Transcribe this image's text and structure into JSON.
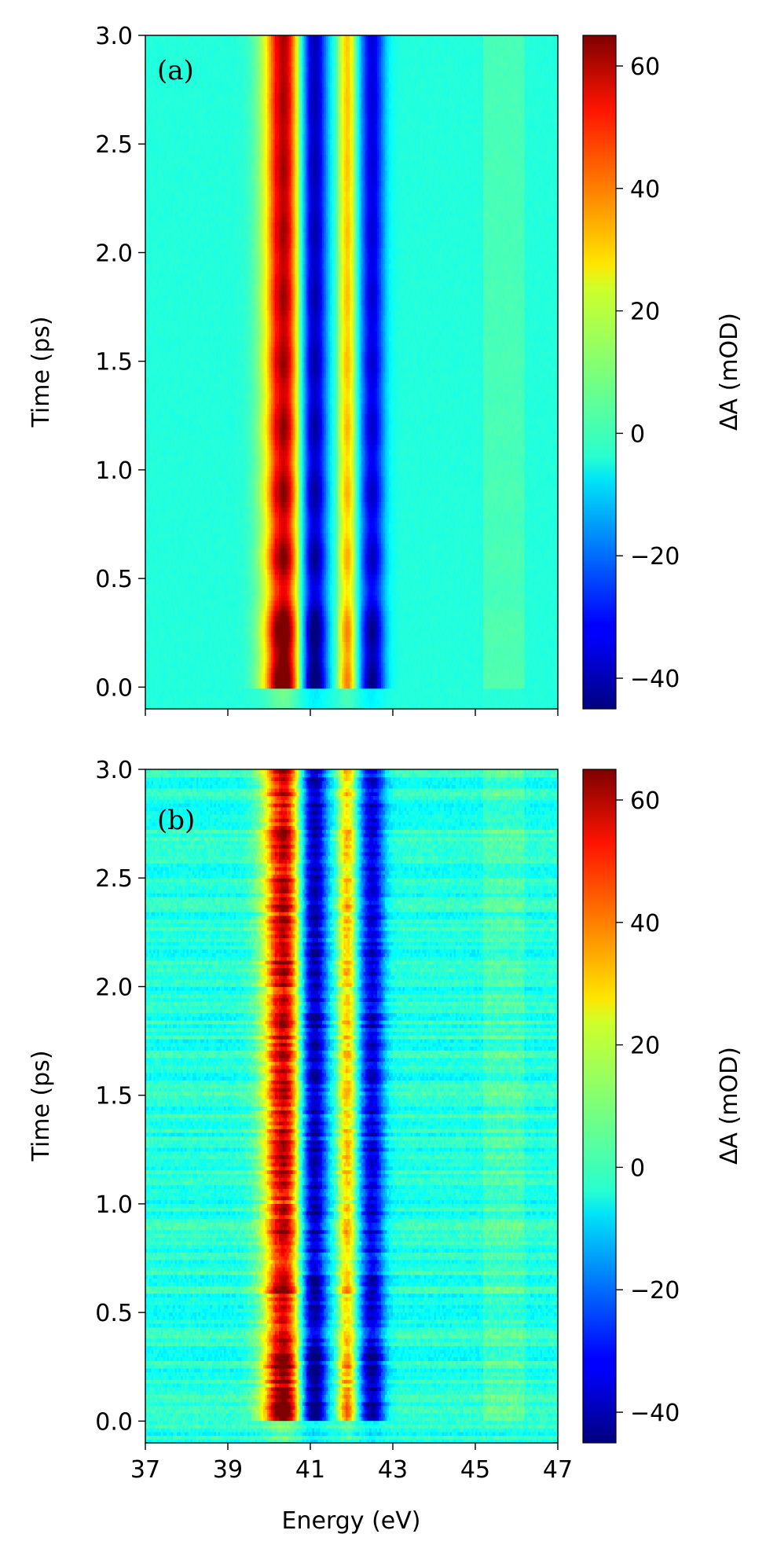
{
  "chart_data": [
    {
      "type": "heatmap",
      "panel_label": "(a)",
      "ylabel": "Time (ps)",
      "xlabel": "",
      "xlim": [
        37,
        47
      ],
      "ylim": [
        -0.1,
        3.0
      ],
      "x_ticks": [
        37,
        39,
        41,
        43,
        45,
        47
      ],
      "x_tick_labels_shown": false,
      "y_ticks": [
        "0.0",
        "0.5",
        "1.0",
        "1.5",
        "2.0",
        "2.5",
        "3.0"
      ],
      "colorbar": {
        "label": "ΔA (mOD)",
        "range": [
          -45,
          65
        ],
        "ticks": [
          "−40",
          "−20",
          "0",
          "20",
          "40",
          "60"
        ],
        "colormap": "jet"
      },
      "features": [
        {
          "kind": "positive",
          "center_eV": 40.35,
          "peak_mOD": 60
        },
        {
          "kind": "negative",
          "center_eV": 41.1,
          "peak_mOD": -40
        },
        {
          "kind": "positive",
          "center_eV": 41.9,
          "peak_mOD": 30
        },
        {
          "kind": "negative",
          "center_eV": 42.5,
          "peak_mOD": -35
        }
      ],
      "noise": "low"
    },
    {
      "type": "heatmap",
      "panel_label": "(b)",
      "ylabel": "Time (ps)",
      "xlabel": "Energy (eV)",
      "xlim": [
        37,
        47
      ],
      "ylim": [
        -0.1,
        3.0
      ],
      "x_ticks": [
        37,
        39,
        41,
        43,
        45,
        47
      ],
      "x_tick_labels_shown": true,
      "x_tick_labels": [
        "37",
        "39",
        "41",
        "43",
        "45",
        "47"
      ],
      "y_ticks": [
        "0.0",
        "0.5",
        "1.0",
        "1.5",
        "2.0",
        "2.5",
        "3.0"
      ],
      "colorbar": {
        "label": "ΔA (mOD)",
        "range": [
          -45,
          65
        ],
        "ticks": [
          "−40",
          "−20",
          "0",
          "20",
          "40",
          "60"
        ],
        "colormap": "jet"
      },
      "features": [
        {
          "kind": "positive",
          "center_eV": 40.35,
          "peak_mOD": 58
        },
        {
          "kind": "negative",
          "center_eV": 41.1,
          "peak_mOD": -40
        },
        {
          "kind": "positive",
          "center_eV": 41.9,
          "peak_mOD": 30
        },
        {
          "kind": "negative",
          "center_eV": 42.5,
          "peak_mOD": -35
        }
      ],
      "noise": "high"
    }
  ]
}
